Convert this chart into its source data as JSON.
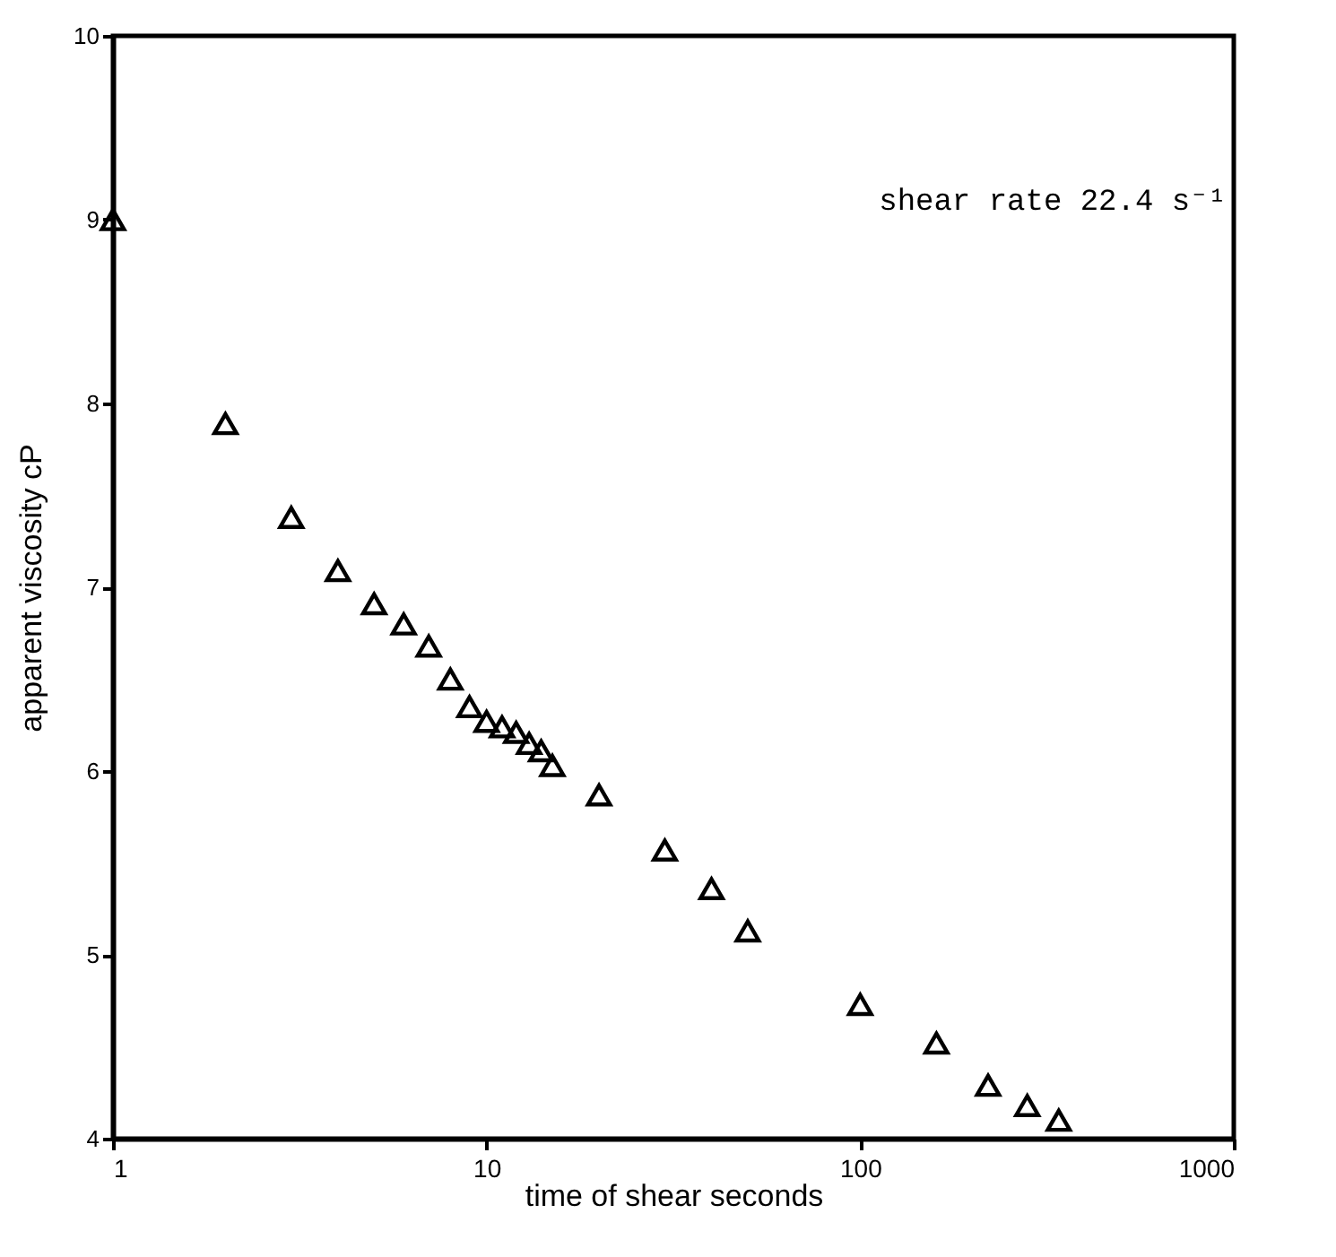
{
  "chart_data": {
    "type": "scatter",
    "xlabel": "time of shear   seconds",
    "ylabel": "apparent viscosity   cP",
    "annotations": [
      "shear rate 22.4 s⁻¹"
    ],
    "log": "x",
    "xlim": [
      1,
      1000
    ],
    "xticks": [
      1,
      10,
      100,
      1000
    ],
    "ylim": [
      4,
      10
    ],
    "yticks": [
      4,
      5,
      6,
      7,
      8,
      9,
      10
    ],
    "grid": false,
    "marker": "triangle",
    "x": [
      1,
      2,
      3,
      4,
      5,
      6,
      7,
      8,
      9,
      10,
      11,
      12,
      13,
      14,
      15,
      20,
      30,
      40,
      50,
      100,
      160,
      220,
      280,
      340
    ],
    "series": [
      {
        "color": "#000000",
        "values": [
          9.0,
          7.89,
          7.38,
          7.09,
          6.91,
          6.8,
          6.68,
          6.5,
          6.35,
          6.27,
          6.24,
          6.21,
          6.15,
          6.11,
          6.03,
          5.87,
          5.57,
          5.36,
          5.13,
          4.73,
          4.52,
          4.29,
          4.18,
          4.1
        ]
      }
    ]
  }
}
